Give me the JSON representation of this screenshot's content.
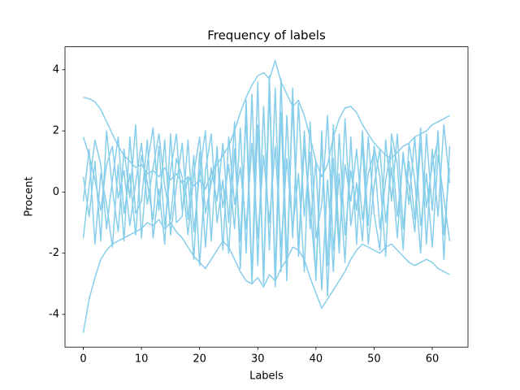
{
  "chart_data": {
    "type": "line",
    "title": "Frequency of labels",
    "x_label": "Labels",
    "y_label": "Procent",
    "xlim": [
      -3.15,
      66.15
    ],
    "xticks": [
      0,
      10,
      20,
      30,
      40,
      50,
      60
    ],
    "ylim": [
      -5.07,
      4.75
    ],
    "yticks": [
      -4,
      -2,
      0,
      2,
      4
    ],
    "grid": false,
    "color": "#87ceeb",
    "x": [
      0,
      1,
      2,
      3,
      4,
      5,
      6,
      7,
      8,
      9,
      10,
      11,
      12,
      13,
      14,
      15,
      16,
      17,
      18,
      19,
      20,
      21,
      22,
      23,
      24,
      25,
      26,
      27,
      28,
      29,
      30,
      31,
      32,
      33,
      34,
      35,
      36,
      37,
      38,
      39,
      40,
      41,
      42,
      43,
      44,
      45,
      46,
      47,
      48,
      49,
      50,
      51,
      52,
      53,
      54,
      55,
      56,
      57,
      58,
      59,
      60,
      61,
      62,
      63
    ],
    "series": [
      {
        "values": [
          3.1,
          3.05,
          2.95,
          2.7,
          2.3,
          1.9,
          1.5,
          1.2,
          1.0,
          0.8,
          0.9,
          0.6,
          0.7,
          0.5,
          0.8,
          0.4,
          0.6,
          0.3,
          0.5,
          0.2,
          0.4,
          0.1,
          0.6,
          0.9,
          1.2,
          1.5,
          2.0,
          2.6,
          3.1,
          3.5,
          3.8,
          3.9,
          3.7,
          4.3,
          3.6,
          3.2,
          2.8,
          3.0,
          2.5,
          1.8,
          1.0,
          0.5,
          0.9,
          1.8,
          2.4,
          2.75,
          2.8,
          2.6,
          2.2,
          1.9,
          1.6,
          1.4,
          1.2,
          1.1,
          1.3,
          1.5,
          1.6,
          1.8,
          1.9,
          2.0,
          2.2,
          2.3,
          2.4,
          2.5
        ]
      },
      {
        "values": [
          -4.6,
          -3.5,
          -2.8,
          -2.2,
          -1.9,
          -1.7,
          -1.6,
          -1.5,
          -1.4,
          -1.3,
          -1.2,
          -1.0,
          -1.1,
          -0.9,
          -1.2,
          -1.0,
          -1.3,
          -1.5,
          -1.8,
          -2.1,
          -2.3,
          -2.5,
          -2.2,
          -1.9,
          -1.6,
          -1.8,
          -2.2,
          -2.6,
          -2.9,
          -3.0,
          -2.8,
          -3.1,
          -2.7,
          -2.9,
          -2.5,
          -2.2,
          -1.8,
          -1.9,
          -2.2,
          -2.8,
          -3.3,
          -3.8,
          -3.5,
          -3.2,
          -2.9,
          -2.6,
          -2.2,
          -1.9,
          -1.7,
          -1.8,
          -1.9,
          -2.0,
          -1.8,
          -1.7,
          -1.9,
          -2.1,
          -2.3,
          -2.4,
          -2.3,
          -2.2,
          -2.3,
          -2.5,
          -2.6,
          -2.7
        ]
      },
      {
        "values": [
          1.8,
          1.2,
          0.4,
          -0.6,
          0.9,
          1.5,
          -0.2,
          0.7,
          -1.1,
          0.3,
          1.6,
          -0.4,
          0.8,
          1.9,
          0.2,
          -0.9,
          1.1,
          0.5,
          -1.4,
          0.6,
          1.8,
          -0.7,
          0.3,
          1.2,
          -0.5,
          0.9,
          -1.2,
          2.1,
          -2.0,
          3.2,
          -2.4,
          2.8,
          -1.9,
          3.4,
          -2.6,
          2.5,
          -1.5,
          2.9,
          -0.8,
          1.3,
          -2.9,
          1.7,
          -2.4,
          2.2,
          -1.6,
          0.9,
          -0.3,
          1.4,
          -0.9,
          0.6,
          1.3,
          -1.2,
          0.4,
          1.5,
          -0.8,
          1.1,
          0.2,
          -1.3,
          1.6,
          -0.5,
          0.9,
          1.7,
          -1.4,
          0.8
        ]
      },
      {
        "values": [
          -1.5,
          0.2,
          1.7,
          0.9,
          -1.2,
          0.4,
          1.8,
          -0.7,
          0.6,
          -1.4,
          1.2,
          0.3,
          -0.9,
          1.5,
          -1.1,
          0.7,
          1.9,
          -0.6,
          0.5,
          -2.2,
          1.3,
          -1.8,
          0.8,
          -0.3,
          1.6,
          -1.0,
          2.3,
          -2.5,
          3.0,
          -2.8,
          3.6,
          -3.0,
          3.3,
          -2.7,
          3.7,
          -2.3,
          2.9,
          -1.9,
          2.0,
          -1.2,
          1.0,
          -3.2,
          0.4,
          -2.6,
          1.9,
          -1.4,
          0.7,
          -0.6,
          1.5,
          -1.7,
          0.2,
          1.4,
          -1.0,
          0.8,
          -1.5,
          1.3,
          -0.4,
          1.8,
          -1.1,
          0.6,
          -1.8,
          1.2,
          -0.2,
          -1.6
        ]
      },
      {
        "values": [
          0.5,
          -0.8,
          1.0,
          -1.6,
          2.0,
          0.1,
          -1.3,
          1.4,
          -0.2,
          2.2,
          -1.5,
          0.9,
          2.1,
          -0.6,
          1.7,
          -1.4,
          0.2,
          1.6,
          -0.9,
          1.2,
          -2.4,
          0.7,
          1.9,
          -1.0,
          0.4,
          -2.0,
          1.4,
          -1.6,
          2.5,
          -3.0,
          2.2,
          -2.7,
          3.8,
          -3.1,
          2.6,
          -2.9,
          3.4,
          -2.1,
          1.5,
          -0.5,
          -2.7,
          2.0,
          -3.4,
          1.1,
          -2.0,
          2.4,
          -1.1,
          0.3,
          -1.6,
          1.8,
          -0.7,
          -1.9,
          1.7,
          -0.3,
          1.9,
          -1.2,
          1.0,
          -0.9,
          2.1,
          -1.7,
          1.4,
          -0.8,
          2.2,
          0.3
        ]
      },
      {
        "values": [
          -0.3,
          1.4,
          -1.7,
          0.6,
          -0.4,
          -1.8,
          0.9,
          -1.6,
          1.8,
          -0.7,
          -0.3,
          1.7,
          -1.5,
          0.1,
          -1.7,
          1.9,
          -1.0,
          -0.8,
          1.7,
          -1.3,
          0.6,
          2.0,
          -1.6,
          1.5,
          -1.9,
          1.8,
          -0.4,
          0.8,
          -1.2,
          1.6,
          -1.5,
          1.2,
          -1.0,
          1.5,
          -1.8,
          1.1,
          -1.2,
          0.6,
          -2.6,
          2.3,
          -1.5,
          -0.4,
          2.5,
          -1.9,
          0.6,
          -2.3,
          1.8,
          -1.7,
          2.0,
          -1.1,
          1.5,
          0.5,
          -2.1,
          1.9,
          0.9,
          -1.9,
          1.6,
          0.4,
          -2.0,
          1.9,
          -0.6,
          2.0,
          -2.2,
          1.5
        ]
      }
    ]
  }
}
